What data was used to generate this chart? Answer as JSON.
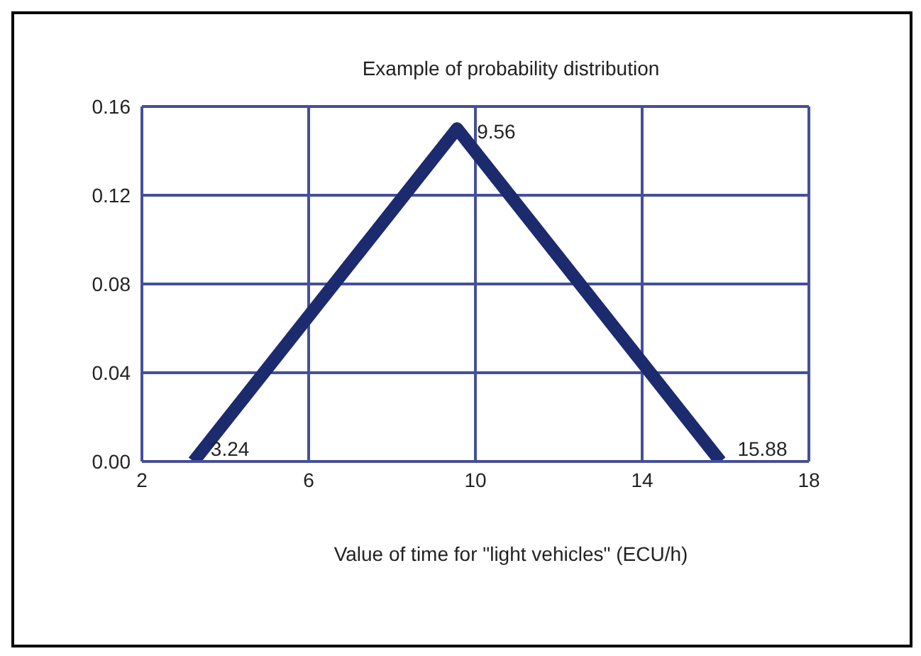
{
  "chart_data": {
    "type": "line",
    "title": "Example of probability distribution",
    "xlabel": "Value of time for \"light vehicles\" (ECU/h)",
    "x": [
      3.24,
      9.56,
      15.88
    ],
    "series": [
      {
        "color": "#1c2a6e",
        "values": [
          0,
          0.15,
          0
        ]
      }
    ],
    "xlim": [
      2,
      18
    ],
    "xticks": [
      2,
      6,
      10,
      14,
      18
    ],
    "ylim": [
      0,
      0.16
    ],
    "yticks": [
      {
        "value": 0,
        "label": "0.00"
      },
      {
        "value": 0.04,
        "label": "0.04"
      },
      {
        "value": 0.08,
        "label": "0.08"
      },
      {
        "value": 0.12,
        "label": "0.12"
      },
      {
        "value": 0.16,
        "label": "0.16"
      }
    ],
    "grid": true,
    "marker": "none",
    "line_style": "solid",
    "annotations": [
      {
        "text": "3.24",
        "x": 3.24,
        "y": 0
      },
      {
        "text": "9.56",
        "x": 9.56,
        "y": 0.15
      },
      {
        "text": "15.88",
        "x": 15.88,
        "y": 0
      }
    ]
  }
}
